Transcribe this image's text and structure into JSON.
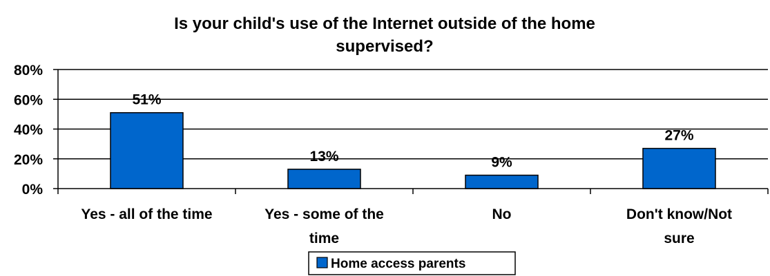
{
  "chart_data": {
    "type": "bar",
    "title": "Is your child's use of the Internet outside of the home supervised?",
    "title_lines": [
      "Is your child's use of the Internet outside of the home",
      "supervised?"
    ],
    "categories": [
      "Yes - all of the time",
      "Yes - some of the time",
      "No",
      "Don't know/Not sure"
    ],
    "category_lines": [
      [
        "Yes - all of the time"
      ],
      [
        "Yes - some of the",
        "time"
      ],
      [
        "No"
      ],
      [
        "Don't know/Not",
        "sure"
      ]
    ],
    "series": [
      {
        "name": "Home access parents",
        "values": [
          51,
          13,
          9,
          27
        ],
        "labels": [
          "51%",
          "13%",
          "9%",
          "27%"
        ],
        "color": "#0066CC"
      }
    ],
    "ylim": [
      0,
      80
    ],
    "yticks": [
      0,
      20,
      40,
      60,
      80
    ],
    "ytick_labels": [
      "0%",
      "20%",
      "40%",
      "60%",
      "80%"
    ],
    "xlabel": "",
    "ylabel": "",
    "grid": true,
    "legend": "bottom-center"
  }
}
